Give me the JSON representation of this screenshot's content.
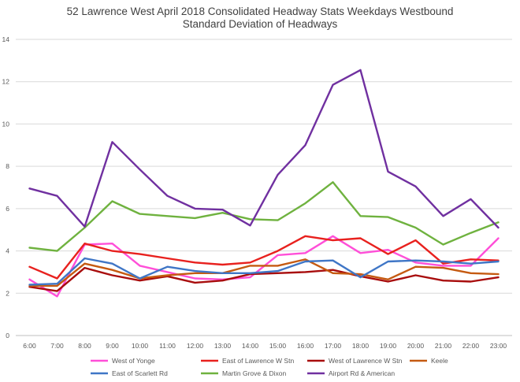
{
  "chart_data": {
    "type": "line",
    "title": "52 Lawrence West   April 2018  Consolidated Headway Stats Weekdays Westbound",
    "subtitle": "Standard Deviation of Headways",
    "xlabel": "",
    "ylabel": "",
    "categories": [
      "6:00",
      "7:00",
      "8:00",
      "9:00",
      "10:00",
      "11:00",
      "12:00",
      "13:00",
      "14:00",
      "15:00",
      "16:00",
      "17:00",
      "18:00",
      "19:00",
      "20:00",
      "21:00",
      "22:00",
      "23:00"
    ],
    "ylim": [
      0,
      14
    ],
    "yticks": [
      0,
      2,
      4,
      6,
      8,
      10,
      12,
      14
    ],
    "grid": true,
    "legend_position": "bottom",
    "series": [
      {
        "name": "West of Yonge",
        "color": "#ff4fd8",
        "values": [
          2.65,
          1.85,
          4.3,
          4.35,
          3.3,
          3.0,
          2.7,
          2.65,
          2.75,
          3.8,
          3.9,
          4.7,
          3.9,
          4.05,
          3.45,
          3.3,
          3.3,
          4.6
        ]
      },
      {
        "name": "East of Lawrence W Stn",
        "color": "#e8211e",
        "values": [
          3.25,
          2.7,
          4.35,
          4.0,
          3.85,
          3.65,
          3.45,
          3.35,
          3.45,
          4.0,
          4.7,
          4.5,
          4.6,
          3.85,
          4.5,
          3.4,
          3.6,
          3.55
        ]
      },
      {
        "name": "West of Lawrence W Stn",
        "color": "#a80d0d",
        "values": [
          2.3,
          2.1,
          3.2,
          2.85,
          2.6,
          2.8,
          2.5,
          2.6,
          2.9,
          2.95,
          3.0,
          3.1,
          2.8,
          2.55,
          2.85,
          2.6,
          2.55,
          2.75
        ]
      },
      {
        "name": "Keele",
        "color": "#c55a11",
        "values": [
          2.35,
          2.35,
          3.4,
          3.1,
          2.7,
          2.85,
          2.95,
          2.95,
          3.3,
          3.3,
          3.6,
          2.95,
          2.9,
          2.65,
          3.25,
          3.2,
          2.95,
          2.9
        ]
      },
      {
        "name": "East of Scarlett Rd",
        "color": "#3f76c6",
        "values": [
          2.4,
          2.45,
          3.65,
          3.4,
          2.7,
          3.25,
          3.05,
          2.95,
          2.95,
          3.05,
          3.5,
          3.55,
          2.75,
          3.5,
          3.55,
          3.5,
          3.4,
          3.5
        ]
      },
      {
        "name": "Martin Grove & Dixon",
        "color": "#6fb23f",
        "values": [
          4.15,
          4.0,
          5.1,
          6.35,
          5.75,
          5.65,
          5.55,
          5.8,
          5.5,
          5.45,
          6.25,
          7.25,
          5.65,
          5.6,
          5.1,
          4.3,
          4.85,
          5.35
        ]
      },
      {
        "name": "Airport Rd & American",
        "color": "#7030a0",
        "values": [
          6.95,
          6.6,
          5.15,
          9.15,
          7.85,
          6.6,
          6.0,
          5.95,
          5.2,
          7.6,
          9.0,
          11.85,
          12.55,
          7.75,
          7.05,
          5.65,
          6.45,
          5.1
        ]
      }
    ]
  }
}
